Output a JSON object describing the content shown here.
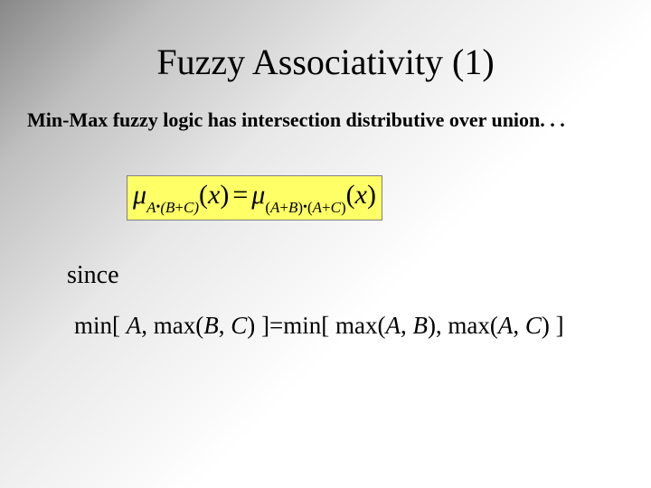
{
  "title": "Fuzzy Associativity (1)",
  "subtitle": "Min-Max fuzzy logic has intersection distributive over union. . .",
  "formula": {
    "mu1": "μ",
    "sub1_a": "A",
    "sub1_dot": "•",
    "sub1_b": "(B",
    "sub1_plus": "+",
    "sub1_c": "C)",
    "x1_open": "(",
    "x1": "x",
    "x1_close": ")",
    "eq": "=",
    "mu2": "μ",
    "sub2_open": "(",
    "sub2_a": "A",
    "sub2_plus1": "+",
    "sub2_b": "B",
    "sub2_close1": ")",
    "sub2_dot": "•",
    "sub2_open2": "(",
    "sub2_a2": "A",
    "sub2_plus2": "+",
    "sub2_c": "C",
    "sub2_close2": ")",
    "x2_open": "(",
    "x2": "x",
    "x2_close": ")"
  },
  "since": "since",
  "line": {
    "p1": "min[ ",
    "A": "A",
    "p2": ", max(",
    "B": "B",
    "p3": ", ",
    "C": "C",
    "p4": ") ]=min[ max(",
    "A2": "A",
    "p5": ", ",
    "B2": "B",
    "p6": "), max(",
    "A3": "A",
    "p7": ", ",
    "C2": "C",
    "p8": ") ]"
  },
  "colors": {
    "formula_bg": "#ffff66",
    "formula_border": "#808080",
    "text": "#000000"
  }
}
